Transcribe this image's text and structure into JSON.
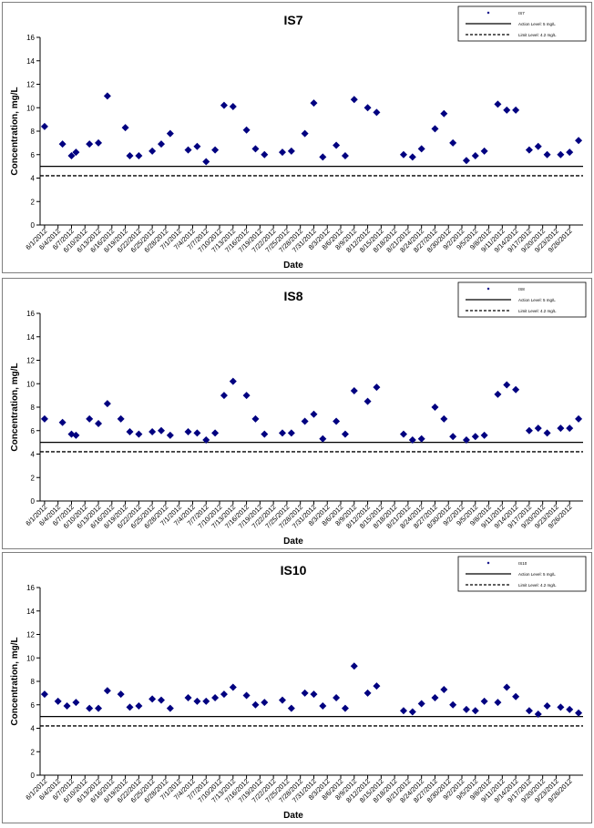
{
  "chart_data": [
    {
      "type": "scatter",
      "title": "IS7",
      "xlabel": "Date",
      "ylabel": "Concentration, mg/L",
      "ylim": [
        0,
        16
      ],
      "yticks": [
        "0",
        "2",
        "4",
        "6",
        "8",
        "10",
        "12",
        "14",
        "16"
      ],
      "grid": false,
      "legend_position": "top-right",
      "x_tick_labels": [
        "6/1/2012",
        "6/4/2012",
        "6/7/2012",
        "6/10/2012",
        "6/13/2012",
        "6/16/2012",
        "6/19/2012",
        "6/22/2012",
        "6/25/2012",
        "6/28/2012",
        "7/1/2012",
        "7/4/2012",
        "7/7/2012",
        "7/10/2012",
        "7/13/2012",
        "7/16/2012",
        "7/19/2012",
        "7/22/2012",
        "7/25/2012",
        "7/28/2012",
        "7/31/2012",
        "8/3/2012",
        "8/6/2012",
        "8/9/2012",
        "8/12/2012",
        "8/15/2012",
        "8/18/2012",
        "8/21/2012",
        "8/24/2012",
        "8/27/2012",
        "8/30/2012",
        "9/2/2012",
        "9/5/2012",
        "9/8/2012",
        "9/11/2012",
        "9/14/2012",
        "9/17/2012",
        "9/20/2012",
        "9/23/2012",
        "9/26/2012"
      ],
      "series": [
        {
          "name": "IS7",
          "color": "#000080",
          "x": [
            "6/1/2012",
            "6/5/2012",
            "6/7/2012",
            "6/8/2012",
            "6/11/2012",
            "6/13/2012",
            "6/15/2012",
            "6/19/2012",
            "6/20/2012",
            "6/22/2012",
            "6/25/2012",
            "6/27/2012",
            "6/29/2012",
            "7/3/2012",
            "7/5/2012",
            "7/7/2012",
            "7/9/2012",
            "7/11/2012",
            "7/13/2012",
            "7/16/2012",
            "7/18/2012",
            "7/20/2012",
            "7/24/2012",
            "7/26/2012",
            "7/29/2012",
            "7/31/2012",
            "8/2/2012",
            "8/5/2012",
            "8/7/2012",
            "8/9/2012",
            "8/12/2012",
            "8/14/2012",
            "8/20/2012",
            "8/22/2012",
            "8/24/2012",
            "8/27/2012",
            "8/29/2012",
            "8/31/2012",
            "9/3/2012",
            "9/5/2012",
            "9/7/2012",
            "9/10/2012",
            "9/12/2012",
            "9/14/2012",
            "9/17/2012",
            "9/19/2012",
            "9/21/2012",
            "9/24/2012",
            "9/26/2012",
            "9/28/2012"
          ],
          "y": [
            8.4,
            6.9,
            5.9,
            6.2,
            6.9,
            7.0,
            11.0,
            8.3,
            5.9,
            5.9,
            6.3,
            6.9,
            7.8,
            6.4,
            6.7,
            5.4,
            6.4,
            10.2,
            10.1,
            8.1,
            6.5,
            6.0,
            6.2,
            6.3,
            7.8,
            10.4,
            5.8,
            6.8,
            5.9,
            10.7,
            10.0,
            9.6,
            6.0,
            5.8,
            6.5,
            8.2,
            9.5,
            7.0,
            5.5,
            5.9,
            6.3,
            10.3,
            9.8,
            9.8,
            6.4,
            6.7,
            6.0,
            6.0,
            6.2,
            7.2
          ]
        },
        {
          "name": "Action Level: 5 mg/L",
          "type": "line",
          "value": 5,
          "color": "#000000",
          "dash": "solid"
        },
        {
          "name": "Limit Level: 4.2 mg/L",
          "type": "line",
          "value": 4.2,
          "color": "#000000",
          "dash": "dashed"
        }
      ]
    },
    {
      "type": "scatter",
      "title": "IS8",
      "xlabel": "Date",
      "ylabel": "Concentration, mg/L",
      "ylim": [
        0,
        16
      ],
      "yticks": [
        "0",
        "2",
        "4",
        "6",
        "8",
        "10",
        "12",
        "14",
        "16"
      ],
      "grid": false,
      "legend_position": "top-right",
      "x_tick_labels": [
        "6/1/2012",
        "6/4/2012",
        "6/7/2012",
        "6/10/2012",
        "6/13/2012",
        "6/16/2012",
        "6/19/2012",
        "6/22/2012",
        "6/25/2012",
        "6/28/2012",
        "7/1/2012",
        "7/4/2012",
        "7/7/2012",
        "7/10/2012",
        "7/13/2012",
        "7/16/2012",
        "7/19/2012",
        "7/22/2012",
        "7/25/2012",
        "7/28/2012",
        "7/31/2012",
        "8/3/2012",
        "8/6/2012",
        "8/9/2012",
        "8/12/2012",
        "8/15/2012",
        "8/18/2012",
        "8/21/2012",
        "8/24/2012",
        "8/27/2012",
        "8/30/2012",
        "9/2/2012",
        "9/5/2012",
        "9/8/2012",
        "9/11/2012",
        "9/14/2012",
        "9/17/2012",
        "9/20/2012",
        "9/23/2012",
        "9/26/2012"
      ],
      "series": [
        {
          "name": "IS8",
          "color": "#000080",
          "x": [
            "6/1/2012",
            "6/5/2012",
            "6/7/2012",
            "6/8/2012",
            "6/11/2012",
            "6/13/2012",
            "6/15/2012",
            "6/18/2012",
            "6/20/2012",
            "6/22/2012",
            "6/25/2012",
            "6/27/2012",
            "6/29/2012",
            "7/3/2012",
            "7/5/2012",
            "7/7/2012",
            "7/9/2012",
            "7/11/2012",
            "7/13/2012",
            "7/16/2012",
            "7/18/2012",
            "7/20/2012",
            "7/24/2012",
            "7/26/2012",
            "7/29/2012",
            "7/31/2012",
            "8/2/2012",
            "8/5/2012",
            "8/7/2012",
            "8/9/2012",
            "8/12/2012",
            "8/14/2012",
            "8/20/2012",
            "8/22/2012",
            "8/24/2012",
            "8/27/2012",
            "8/29/2012",
            "8/31/2012",
            "9/3/2012",
            "9/5/2012",
            "9/7/2012",
            "9/10/2012",
            "9/12/2012",
            "9/14/2012",
            "9/17/2012",
            "9/19/2012",
            "9/21/2012",
            "9/24/2012",
            "9/26/2012",
            "9/28/2012"
          ],
          "y": [
            7.0,
            6.7,
            5.7,
            5.6,
            7.0,
            6.6,
            8.3,
            7.0,
            5.9,
            5.7,
            5.9,
            6.0,
            5.6,
            5.9,
            5.8,
            5.2,
            5.8,
            9.0,
            10.2,
            9.0,
            7.0,
            5.7,
            5.8,
            5.8,
            6.8,
            7.4,
            5.3,
            6.8,
            5.7,
            9.4,
            8.5,
            9.7,
            5.7,
            5.2,
            5.3,
            8.0,
            7.0,
            5.5,
            5.2,
            5.5,
            5.6,
            9.1,
            9.9,
            9.5,
            6.0,
            6.2,
            5.8,
            6.2,
            6.2,
            7.0
          ]
        },
        {
          "name": "Action Level: 5 mg/L",
          "type": "line",
          "value": 5,
          "color": "#000000",
          "dash": "solid"
        },
        {
          "name": "Limit Level: 4.2 mg/L",
          "type": "line",
          "value": 4.2,
          "color": "#000000",
          "dash": "dashed"
        }
      ]
    },
    {
      "type": "scatter",
      "title": "IS10",
      "xlabel": "Date",
      "ylabel": "Concentration, mg/L",
      "ylim": [
        0,
        16
      ],
      "yticks": [
        "0",
        "2",
        "4",
        "6",
        "8",
        "10",
        "12",
        "14",
        "16"
      ],
      "grid": false,
      "legend_position": "top-right",
      "x_tick_labels": [
        "6/1/2012",
        "6/4/2012",
        "6/7/2012",
        "6/10/2012",
        "6/13/2012",
        "6/16/2012",
        "6/19/2012",
        "6/22/2012",
        "6/25/2012",
        "6/28/2012",
        "7/1/2012",
        "7/4/2012",
        "7/7/2012",
        "7/10/2012",
        "7/13/2012",
        "7/16/2012",
        "7/19/2012",
        "7/22/2012",
        "7/25/2012",
        "7/28/2012",
        "7/31/2012",
        "8/3/2012",
        "8/6/2012",
        "8/9/2012",
        "8/12/2012",
        "8/15/2012",
        "8/18/2012",
        "8/21/2012",
        "8/24/2012",
        "8/27/2012",
        "8/30/2012",
        "9/2/2012",
        "9/5/2012",
        "9/8/2012",
        "9/11/2012",
        "9/14/2012",
        "9/17/2012",
        "9/20/2012",
        "9/23/2012",
        "9/26/2012"
      ],
      "series": [
        {
          "name": "IS10",
          "color": "#000080",
          "x": [
            "6/1/2012",
            "6/4/2012",
            "6/6/2012",
            "6/8/2012",
            "6/11/2012",
            "6/13/2012",
            "6/15/2012",
            "6/18/2012",
            "6/20/2012",
            "6/22/2012",
            "6/25/2012",
            "6/27/2012",
            "6/29/2012",
            "7/3/2012",
            "7/5/2012",
            "7/7/2012",
            "7/9/2012",
            "7/11/2012",
            "7/13/2012",
            "7/16/2012",
            "7/18/2012",
            "7/20/2012",
            "7/24/2012",
            "7/26/2012",
            "7/29/2012",
            "7/31/2012",
            "8/2/2012",
            "8/5/2012",
            "8/7/2012",
            "8/9/2012",
            "8/12/2012",
            "8/14/2012",
            "8/20/2012",
            "8/22/2012",
            "8/24/2012",
            "8/27/2012",
            "8/29/2012",
            "8/31/2012",
            "9/3/2012",
            "9/5/2012",
            "9/7/2012",
            "9/10/2012",
            "9/12/2012",
            "9/14/2012",
            "9/17/2012",
            "9/19/2012",
            "9/21/2012",
            "9/24/2012",
            "9/26/2012",
            "9/28/2012"
          ],
          "y": [
            6.9,
            6.3,
            5.9,
            6.2,
            5.7,
            5.7,
            7.2,
            6.9,
            5.8,
            5.9,
            6.5,
            6.4,
            5.7,
            6.6,
            6.3,
            6.3,
            6.6,
            6.9,
            7.5,
            6.8,
            6.0,
            6.2,
            6.4,
            5.7,
            7.0,
            6.9,
            5.9,
            6.6,
            5.7,
            9.3,
            7.0,
            7.6,
            5.5,
            5.4,
            6.1,
            6.6,
            7.3,
            6.0,
            5.6,
            5.5,
            6.3,
            6.2,
            7.5,
            6.7,
            5.5,
            5.2,
            5.9,
            5.8,
            5.6,
            5.3
          ]
        },
        {
          "name": "Action Level: 5 mg/L",
          "type": "line",
          "value": 5,
          "color": "#000000",
          "dash": "solid"
        },
        {
          "name": "Limit Level: 4.2 mg/L",
          "type": "line",
          "value": 4.2,
          "color": "#000000",
          "dash": "dashed"
        }
      ]
    }
  ]
}
